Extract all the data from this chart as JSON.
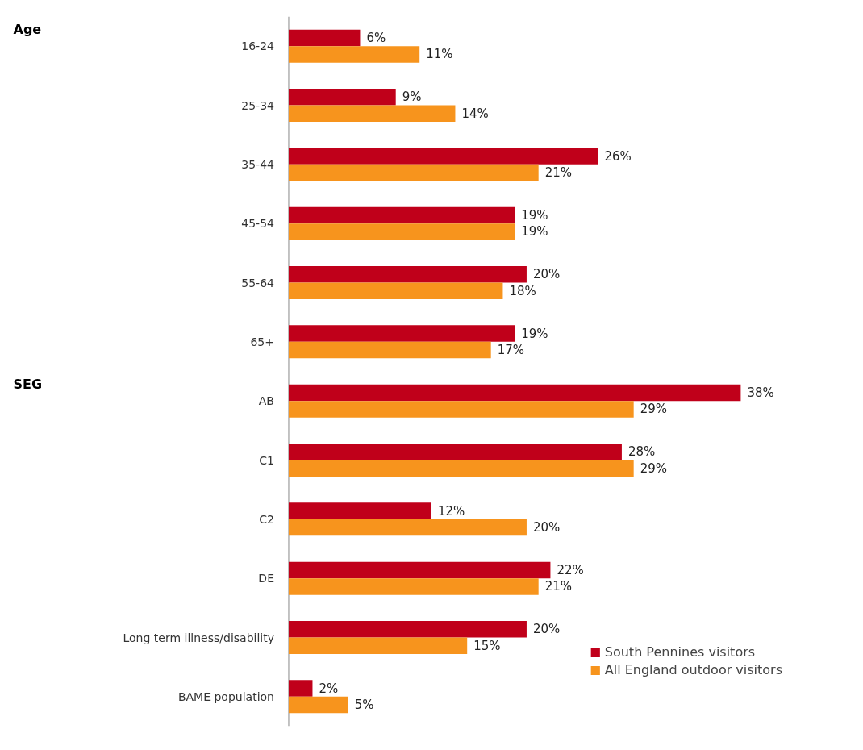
{
  "chart_data": {
    "type": "bar",
    "orientation": "horizontal",
    "categories": [
      "16-24",
      "25-34",
      "35-44",
      "45-54",
      "55-64",
      "65+",
      "AB",
      "C1",
      "C2",
      "DE",
      "Long term illness/disability",
      "BAME population"
    ],
    "series": [
      {
        "name": "South Pennines visitors",
        "color": "#c0001a",
        "values": [
          6,
          9,
          26,
          19,
          20,
          19,
          38,
          28,
          12,
          22,
          20,
          2
        ],
        "value_labels": [
          "6%",
          "9%",
          "26%",
          "19%",
          "20%",
          "19%",
          "38%",
          "28%",
          "12%",
          "22%",
          "20%",
          "2%"
        ]
      },
      {
        "name": "All England outdoor visitors",
        "color": "#f7941d",
        "values": [
          11,
          14,
          21,
          19,
          18,
          17,
          29,
          29,
          20,
          21,
          15,
          5
        ],
        "value_labels": [
          "11%",
          "14%",
          "21%",
          "19%",
          "18%",
          "17%",
          "29%",
          "29%",
          "20%",
          "21%",
          "15%",
          "5%"
        ]
      }
    ],
    "annotations": [
      "Age",
      "SEG"
    ],
    "legend": "bottom right",
    "tick_labels": "y",
    "grid": false
  }
}
